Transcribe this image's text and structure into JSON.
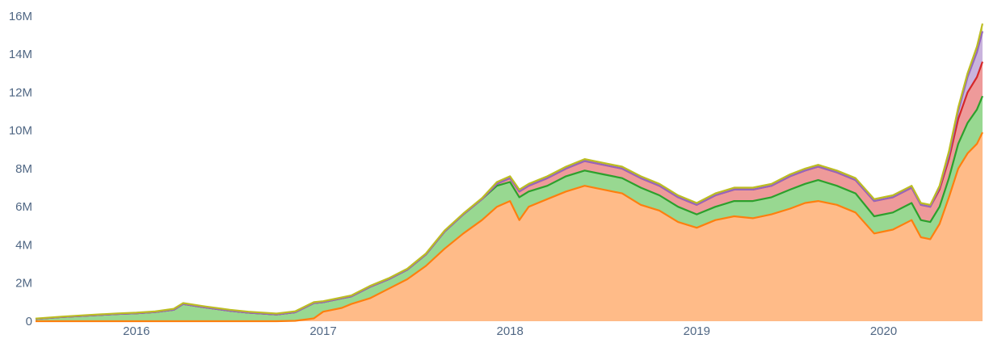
{
  "chart_data": {
    "type": "area",
    "stacked": true,
    "grid": false,
    "x_tick_labels": [
      "2016",
      "2017",
      "2018",
      "2019",
      "2020"
    ],
    "x_tick_values": [
      2016.0,
      2017.0,
      2018.0,
      2019.0,
      2020.0
    ],
    "x_range": [
      2015.46,
      2020.53
    ],
    "y_tick_labels": [
      "0",
      "2M",
      "4M",
      "6M",
      "8M",
      "10M",
      "12M",
      "14M",
      "16M"
    ],
    "y_tick_values": [
      0,
      2000000,
      4000000,
      6000000,
      8000000,
      10000000,
      12000000,
      14000000,
      16000000
    ],
    "ylim": [
      0,
      16500000
    ],
    "x": [
      2015.46,
      2015.6,
      2015.75,
      2015.9,
      2016.0,
      2016.1,
      2016.2,
      2016.25,
      2016.35,
      2016.5,
      2016.6,
      2016.75,
      2016.85,
      2016.95,
      2017.0,
      2017.1,
      2017.15,
      2017.25,
      2017.35,
      2017.45,
      2017.55,
      2017.65,
      2017.75,
      2017.85,
      2017.93,
      2018.0,
      2018.05,
      2018.1,
      2018.2,
      2018.3,
      2018.4,
      2018.5,
      2018.6,
      2018.7,
      2018.8,
      2018.9,
      2019.0,
      2019.1,
      2019.2,
      2019.3,
      2019.4,
      2019.5,
      2019.58,
      2019.65,
      2019.75,
      2019.85,
      2019.95,
      2020.05,
      2020.15,
      2020.2,
      2020.25,
      2020.3,
      2020.35,
      2020.4,
      2020.45,
      2020.5,
      2020.53
    ],
    "series": [
      {
        "color": "#ff7f0e",
        "fill": "#ffbb88",
        "values": [
          0,
          0,
          0,
          0,
          0,
          0,
          0,
          0,
          0,
          0,
          0,
          0,
          0.02,
          0.15,
          0.5,
          0.7,
          0.9,
          1.2,
          1.7,
          2.2,
          2.9,
          3.8,
          4.6,
          5.3,
          6.0,
          6.3,
          5.3,
          6.0,
          6.4,
          6.8,
          7.1,
          6.9,
          6.7,
          6.1,
          5.8,
          5.2,
          4.9,
          5.3,
          5.5,
          5.4,
          5.6,
          5.9,
          6.2,
          6.3,
          6.1,
          5.7,
          4.6,
          4.8,
          5.3,
          4.4,
          4.3,
          5.1,
          6.5,
          8.0,
          8.8,
          9.3,
          9.9
        ]
      },
      {
        "color": "#2ca02c",
        "fill": "#98d891",
        "values": [
          0.12,
          0.22,
          0.3,
          0.38,
          0.42,
          0.48,
          0.6,
          0.9,
          0.75,
          0.55,
          0.45,
          0.35,
          0.45,
          0.8,
          0.5,
          0.5,
          0.4,
          0.6,
          0.5,
          0.5,
          0.6,
          0.9,
          1.0,
          1.1,
          1.1,
          1.0,
          1.2,
          0.8,
          0.7,
          0.8,
          0.8,
          0.8,
          0.8,
          0.9,
          0.8,
          0.8,
          0.7,
          0.7,
          0.8,
          0.9,
          0.9,
          1.0,
          1.0,
          1.1,
          1.0,
          1.0,
          0.9,
          0.9,
          0.9,
          0.9,
          0.9,
          0.9,
          1.0,
          1.3,
          1.6,
          1.8,
          1.9
        ]
      },
      {
        "color": "#d62728",
        "fill": "#ee9a9a",
        "values": [
          0,
          0,
          0,
          0,
          0,
          0,
          0,
          0,
          0,
          0,
          0,
          0,
          0,
          0,
          0,
          0,
          0,
          0,
          0,
          0,
          0,
          0,
          0,
          0,
          0.1,
          0.2,
          0.3,
          0.3,
          0.4,
          0.4,
          0.5,
          0.5,
          0.5,
          0.5,
          0.5,
          0.5,
          0.5,
          0.6,
          0.6,
          0.6,
          0.6,
          0.7,
          0.7,
          0.7,
          0.7,
          0.7,
          0.8,
          0.8,
          0.8,
          0.8,
          0.8,
          0.9,
          1.0,
          1.3,
          1.6,
          1.7,
          1.8
        ]
      },
      {
        "color": "#9467bd",
        "fill": "#c9b3dd",
        "values": [
          0,
          0,
          0,
          0,
          0,
          0,
          0,
          0,
          0,
          0,
          0,
          0,
          0,
          0,
          0,
          0,
          0,
          0,
          0,
          0,
          0,
          0,
          0,
          0,
          0,
          0,
          0,
          0,
          0,
          0,
          0,
          0,
          0,
          0,
          0,
          0,
          0,
          0,
          0,
          0,
          0,
          0,
          0,
          0,
          0,
          0,
          0,
          0,
          0,
          0,
          0,
          0.1,
          0.2,
          0.4,
          0.8,
          1.3,
          1.6
        ]
      },
      {
        "color": "#bcbd22",
        "fill": "#d9da7a",
        "values": [
          0.02,
          0.02,
          0.03,
          0.03,
          0.03,
          0.03,
          0.05,
          0.05,
          0.05,
          0.05,
          0.05,
          0.05,
          0.05,
          0.05,
          0.05,
          0.05,
          0.05,
          0.05,
          0.05,
          0.05,
          0.05,
          0.05,
          0.05,
          0.05,
          0.1,
          0.1,
          0.1,
          0.1,
          0.1,
          0.1,
          0.1,
          0.1,
          0.1,
          0.1,
          0.1,
          0.1,
          0.1,
          0.1,
          0.1,
          0.1,
          0.1,
          0.1,
          0.1,
          0.1,
          0.1,
          0.1,
          0.1,
          0.1,
          0.1,
          0.1,
          0.1,
          0.1,
          0.2,
          0.2,
          0.2,
          0.3,
          0.4
        ]
      }
    ]
  }
}
